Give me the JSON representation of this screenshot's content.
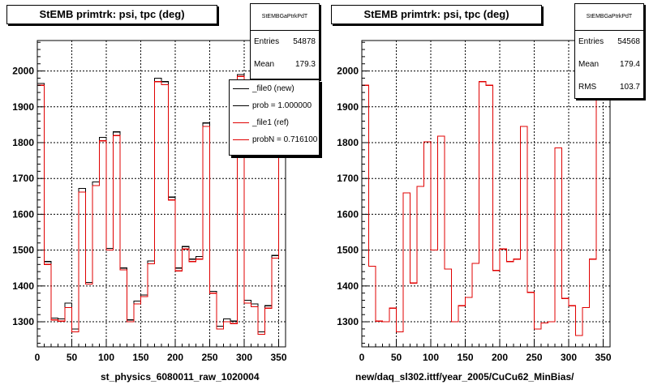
{
  "colors": {
    "new": "#000000",
    "ref": "#e00000",
    "grid": "#000000"
  },
  "left_panel": {
    "title": "StEMB primtrk: psi, tpc (deg)",
    "stats": {
      "name": "StEMBGaPtrkPdT",
      "entries_label": "Entries",
      "entries": "54878",
      "mean_label": "Mean",
      "mean": "179.3"
    },
    "legend": [
      {
        "label": "_file0 (new)",
        "color": "#000000"
      },
      {
        "label": "prob = 1.000000",
        "color": "#000000"
      },
      {
        "label": "_file1 (ref)",
        "color": "#e00000"
      },
      {
        "label": "probN = 0.716100",
        "color": "#e00000"
      }
    ],
    "xaxis_title": "st_physics_6080011_raw_1020004"
  },
  "right_panel": {
    "title": "StEMB primtrk: psi, tpc (deg)",
    "stats": {
      "name": "StEMBGaPtrkPdT",
      "entries_label": "Entries",
      "entries": "54568",
      "mean_label": "Mean",
      "mean": "179.4",
      "rms_label": "RMS",
      "rms": "103.7"
    },
    "xaxis_title": "new/daq_sl302.ittf/year_2005/CuCu62_MinBias/"
  },
  "chart_data": [
    {
      "type": "line",
      "title": "StEMB primtrk: psi, tpc (deg)",
      "xlabel": "st_physics_6080011_raw_1020004",
      "ylabel": "",
      "xlim": [
        0,
        360
      ],
      "ylim": [
        1230,
        2085
      ],
      "grid": true,
      "legend": "top-right",
      "x_ticks": [
        0,
        50,
        100,
        150,
        200,
        250,
        300,
        350
      ],
      "y_ticks": [
        1300,
        1400,
        1500,
        1600,
        1700,
        1800,
        1900,
        2000
      ],
      "bin_width": 10,
      "bin_low_edges": [
        0,
        10,
        20,
        30,
        40,
        50,
        60,
        70,
        80,
        90,
        100,
        110,
        120,
        130,
        140,
        150,
        160,
        170,
        180,
        190,
        200,
        210,
        220,
        230,
        240,
        250,
        260,
        270,
        280,
        290,
        300,
        310,
        320,
        330,
        340,
        350
      ],
      "series": [
        {
          "name": "_file0 (new)",
          "values": [
            1965,
            1468,
            1310,
            1308,
            1352,
            1280,
            1672,
            1410,
            1690,
            1815,
            1505,
            1830,
            1450,
            1305,
            1358,
            1375,
            1470,
            1980,
            1970,
            1648,
            1450,
            1510,
            1475,
            1482,
            1855,
            1385,
            1288,
            1308,
            1302,
            1990,
            1360,
            1350,
            1272,
            1345,
            1485,
            1995
          ]
        },
        {
          "name": "_file1 (ref)",
          "values": [
            1960,
            1460,
            1305,
            1302,
            1340,
            1272,
            1662,
            1405,
            1680,
            1805,
            1500,
            1820,
            1445,
            1300,
            1350,
            1370,
            1462,
            1970,
            1962,
            1640,
            1442,
            1503,
            1468,
            1475,
            1845,
            1380,
            1280,
            1300,
            1295,
            1985,
            1352,
            1342,
            1265,
            1338,
            1478,
            1990
          ]
        }
      ]
    },
    {
      "type": "line",
      "title": "StEMB primtrk: psi, tpc (deg)",
      "xlabel": "new/daq_sl302.ittf/year_2005/CuCu62_MinBias/",
      "ylabel": "",
      "xlim": [
        0,
        360
      ],
      "ylim": [
        1230,
        2085
      ],
      "grid": true,
      "x_ticks": [
        0,
        50,
        100,
        150,
        200,
        250,
        300,
        350
      ],
      "y_ticks": [
        1300,
        1400,
        1500,
        1600,
        1700,
        1800,
        1900,
        2000
      ],
      "bin_width": 10,
      "bin_low_edges": [
        0,
        10,
        20,
        30,
        40,
        50,
        60,
        70,
        80,
        90,
        100,
        110,
        120,
        130,
        140,
        150,
        160,
        170,
        180,
        190,
        200,
        210,
        220,
        230,
        240,
        250,
        260,
        270,
        280,
        290,
        300,
        310,
        320,
        330,
        340,
        350
      ],
      "series": [
        {
          "values": [
            1960,
            1455,
            1302,
            1300,
            1338,
            1272,
            1660,
            1408,
            1678,
            1802,
            1500,
            1818,
            1447,
            1300,
            1345,
            1368,
            1463,
            1970,
            1960,
            1443,
            1503,
            1468,
            1475,
            1845,
            1382,
            1280,
            1297,
            1300,
            1785,
            1365,
            1345,
            1262,
            1340,
            1475,
            1990,
            1990
          ]
        }
      ]
    }
  ]
}
